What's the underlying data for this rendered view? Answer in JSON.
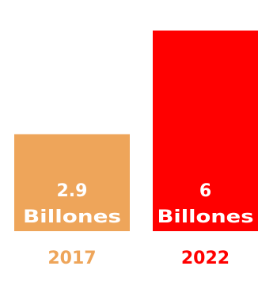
{
  "chart_data": {
    "type": "bar",
    "categories": [
      "2017",
      "2022"
    ],
    "values": [
      2.9,
      6
    ],
    "data_labels": [
      {
        "value": "2.9",
        "unit": "Billones"
      },
      {
        "value": "6",
        "unit": "Billones"
      }
    ],
    "colors": [
      "#eea55a",
      "#ff0000"
    ],
    "ylim": [
      0,
      6.7
    ],
    "grid": false,
    "legend": "none"
  }
}
